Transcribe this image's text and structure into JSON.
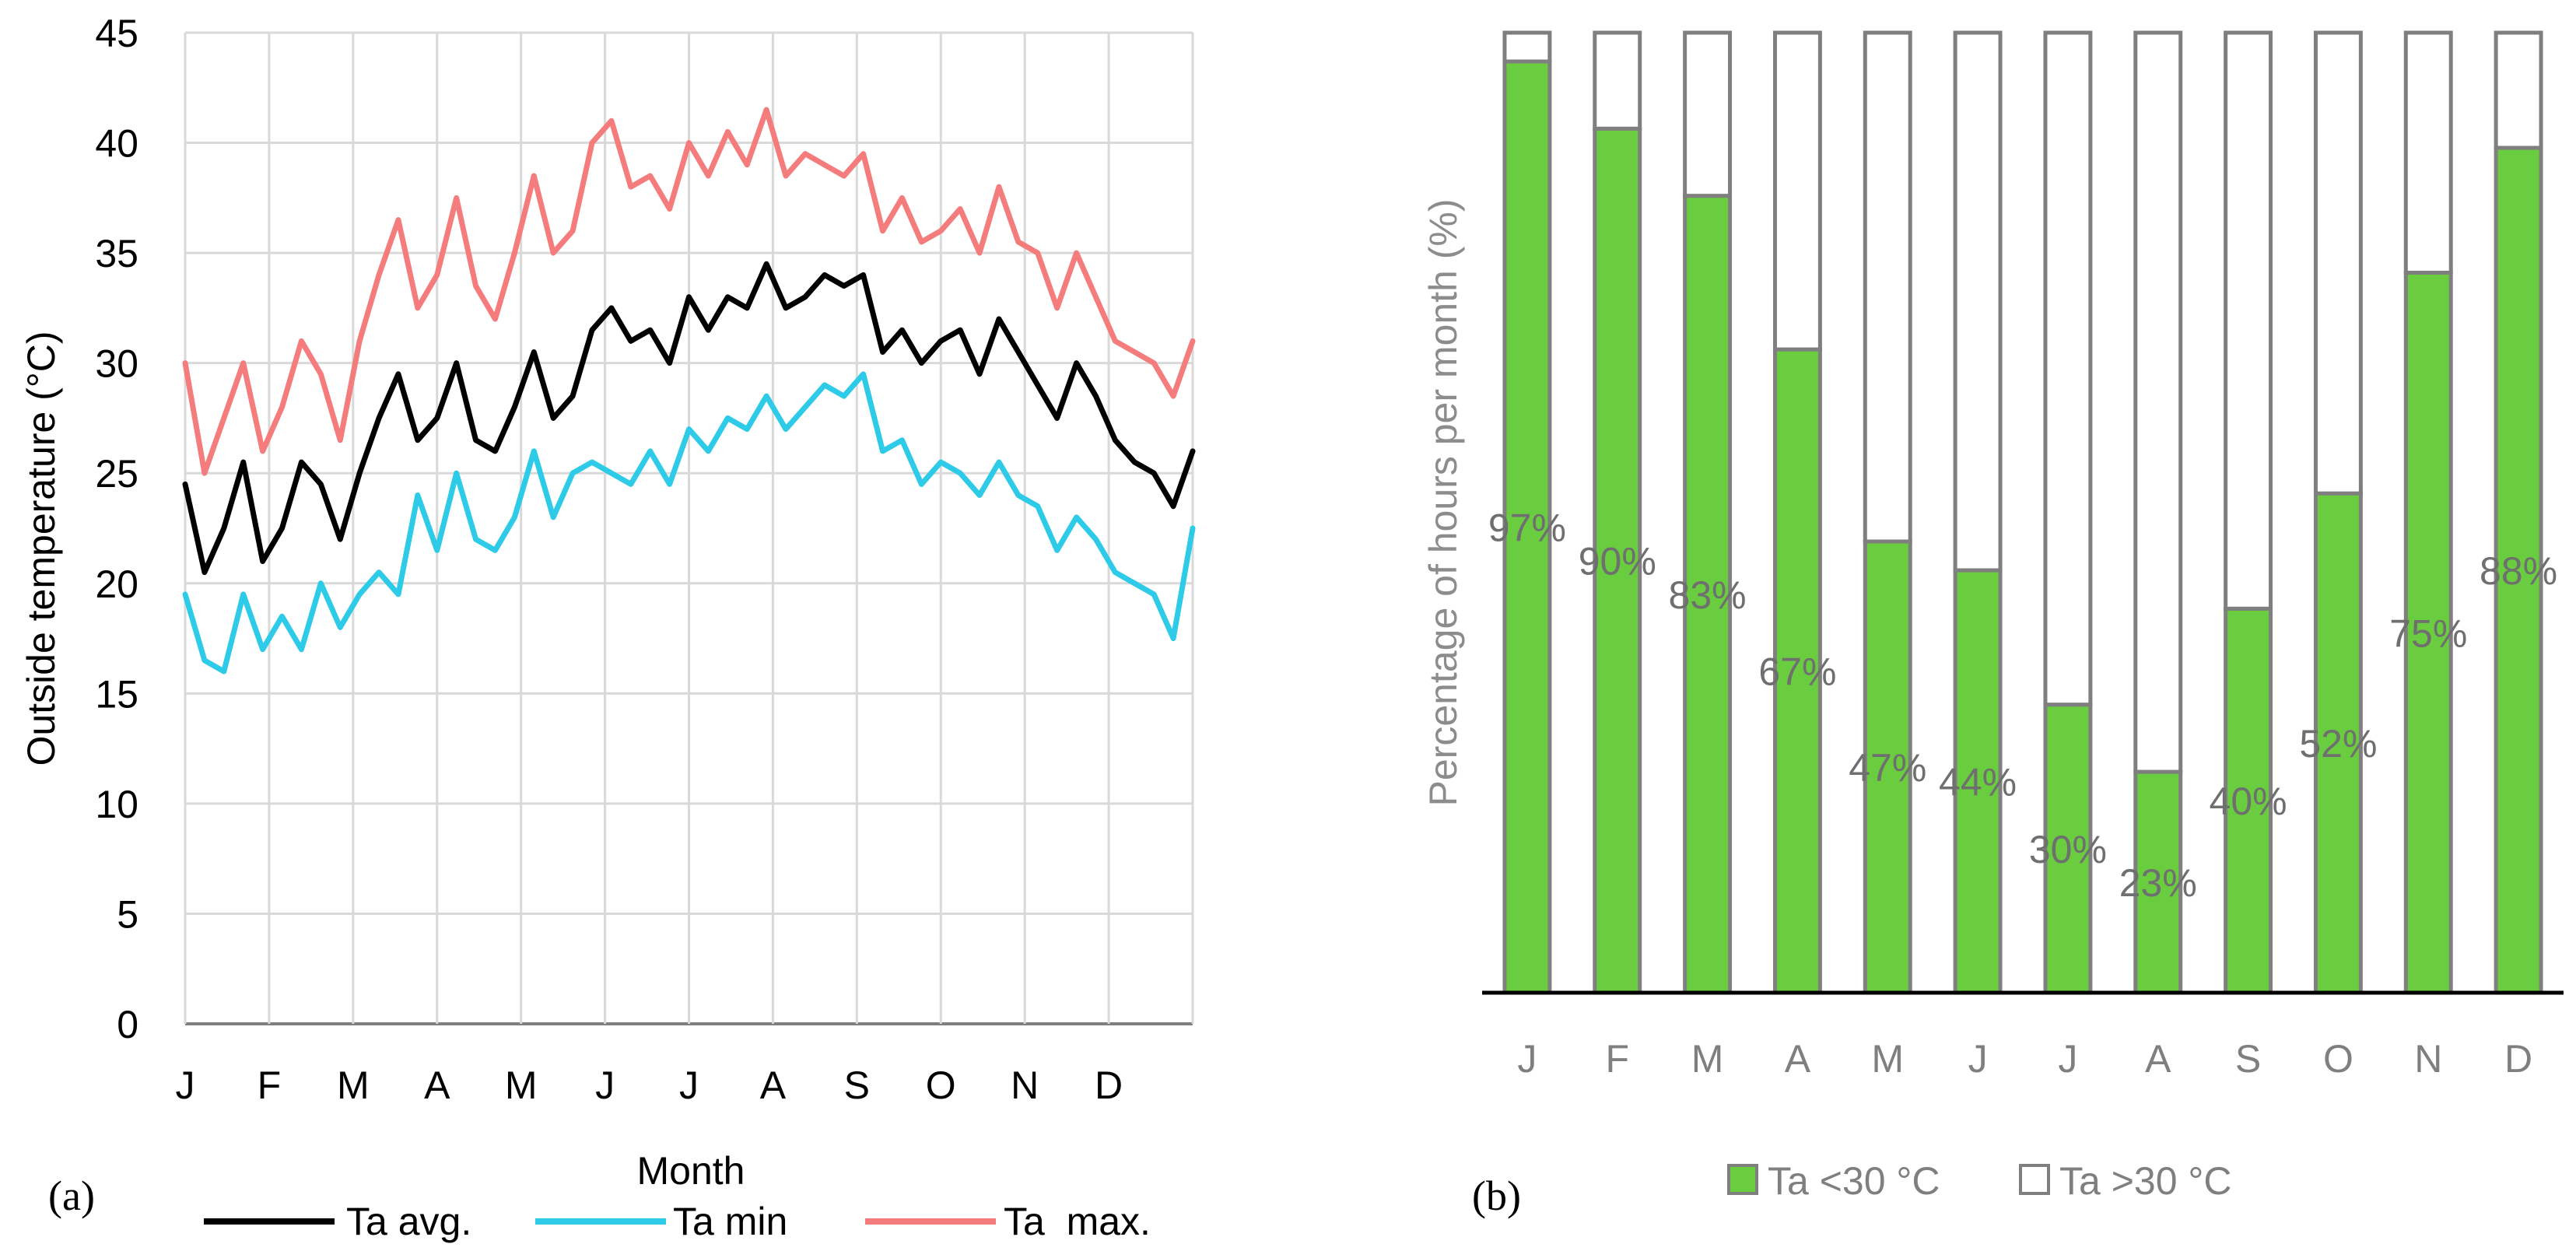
{
  "chart_data": [
    {
      "id": "a",
      "panel_label": "(a)",
      "type": "line",
      "title": "",
      "xlabel": "Month",
      "ylabel": "Outside temperature (°C)",
      "ylim": [
        0,
        45
      ],
      "yticks": [
        "0",
        "5",
        "10",
        "15",
        "20",
        "25",
        "30",
        "35",
        "40",
        "45"
      ],
      "categories": [
        "J",
        "F",
        "M",
        "A",
        "M",
        "J",
        "J",
        "A",
        "S",
        "O",
        "N",
        "D"
      ],
      "grid": true,
      "legend_position": "bottom",
      "x_unit": "day of year (1-365)",
      "series": [
        {
          "name": "Ta avg.",
          "color": "#000000",
          "x": [
            1,
            8,
            15,
            22,
            29,
            36,
            43,
            50,
            57,
            64,
            71,
            78,
            85,
            92,
            99,
            106,
            113,
            120,
            127,
            134,
            141,
            148,
            155,
            162,
            169,
            176,
            183,
            190,
            197,
            204,
            211,
            218,
            225,
            232,
            239,
            246,
            253,
            260,
            267,
            274,
            281,
            288,
            295,
            302,
            309,
            316,
            323,
            330,
            337,
            344,
            351,
            358,
            365
          ],
          "values": [
            24.5,
            20.5,
            22.5,
            25.5,
            21,
            22.5,
            25.5,
            24.5,
            22,
            25,
            27.5,
            29.5,
            26.5,
            27.5,
            30,
            26.5,
            26,
            28,
            30.5,
            27.5,
            28.5,
            31.5,
            32.5,
            31,
            31.5,
            30,
            33,
            31.5,
            33,
            32.5,
            34.5,
            32.5,
            33,
            34,
            33.5,
            34,
            30.5,
            31.5,
            30,
            31,
            31.5,
            29.5,
            32,
            30.5,
            29,
            27.5,
            30,
            28.5,
            26.5,
            25.5,
            25,
            23.5,
            26
          ]
        },
        {
          "name": "Ta min",
          "color": "#2dcbe8",
          "x": [
            1,
            8,
            15,
            22,
            29,
            36,
            43,
            50,
            57,
            64,
            71,
            78,
            85,
            92,
            99,
            106,
            113,
            120,
            127,
            134,
            141,
            148,
            155,
            162,
            169,
            176,
            183,
            190,
            197,
            204,
            211,
            218,
            225,
            232,
            239,
            246,
            253,
            260,
            267,
            274,
            281,
            288,
            295,
            302,
            309,
            316,
            323,
            330,
            337,
            344,
            351,
            358,
            365
          ],
          "values": [
            19.5,
            16.5,
            16,
            19.5,
            17,
            18.5,
            17,
            20,
            18,
            19.5,
            20.5,
            19.5,
            24,
            21.5,
            25,
            22,
            21.5,
            23,
            26,
            23,
            25,
            25.5,
            25,
            24.5,
            26,
            24.5,
            27,
            26,
            27.5,
            27,
            28.5,
            27,
            28,
            29,
            28.5,
            29.5,
            26,
            26.5,
            24.5,
            25.5,
            25,
            24,
            25.5,
            24,
            23.5,
            21.5,
            23,
            22,
            20.5,
            20,
            19.5,
            17.5,
            22.5
          ]
        },
        {
          "name": "Ta  max.",
          "color": "#f47c7c",
          "x": [
            1,
            8,
            15,
            22,
            29,
            36,
            43,
            50,
            57,
            64,
            71,
            78,
            85,
            92,
            99,
            106,
            113,
            120,
            127,
            134,
            141,
            148,
            155,
            162,
            169,
            176,
            183,
            190,
            197,
            204,
            211,
            218,
            225,
            232,
            239,
            246,
            253,
            260,
            267,
            274,
            281,
            288,
            295,
            302,
            309,
            316,
            323,
            330,
            337,
            344,
            351,
            358,
            365
          ],
          "values": [
            30,
            25,
            27.5,
            30,
            26,
            28,
            31,
            29.5,
            26.5,
            31,
            34,
            36.5,
            32.5,
            34,
            37.5,
            33.5,
            32,
            35,
            38.5,
            35,
            36,
            40,
            41,
            38,
            38.5,
            37,
            40,
            38.5,
            40.5,
            39,
            41.5,
            38.5,
            39.5,
            39,
            38.5,
            39.5,
            36,
            37.5,
            35.5,
            36,
            37,
            35,
            38,
            35.5,
            35,
            32.5,
            35,
            33,
            31,
            30.5,
            30,
            28.5,
            31
          ]
        }
      ]
    },
    {
      "id": "b",
      "panel_label": "(b)",
      "type": "bar",
      "stacked": true,
      "title": "",
      "xlabel": "",
      "ylabel": "Percentage of hours per month (%)",
      "ylim": [
        0,
        100
      ],
      "categories": [
        "J",
        "F",
        "M",
        "A",
        "M",
        "J",
        "J",
        "A",
        "S",
        "O",
        "N",
        "D"
      ],
      "legend_position": "bottom",
      "series": [
        {
          "name": "Ta <30 °C",
          "color": "#6acd3f",
          "values": [
            97,
            90,
            83,
            67,
            47,
            44,
            30,
            23,
            40,
            52,
            75,
            88
          ],
          "labels": [
            "97%",
            "90%",
            "83%",
            "67%",
            "47%",
            "44%",
            "30%",
            "23%",
            "40%",
            "52%",
            "75%",
            "88%"
          ]
        },
        {
          "name": "Ta >30 °C",
          "color": "#ffffff",
          "values": [
            3,
            10,
            17,
            33,
            53,
            56,
            70,
            77,
            60,
            48,
            25,
            12
          ]
        }
      ]
    }
  ]
}
